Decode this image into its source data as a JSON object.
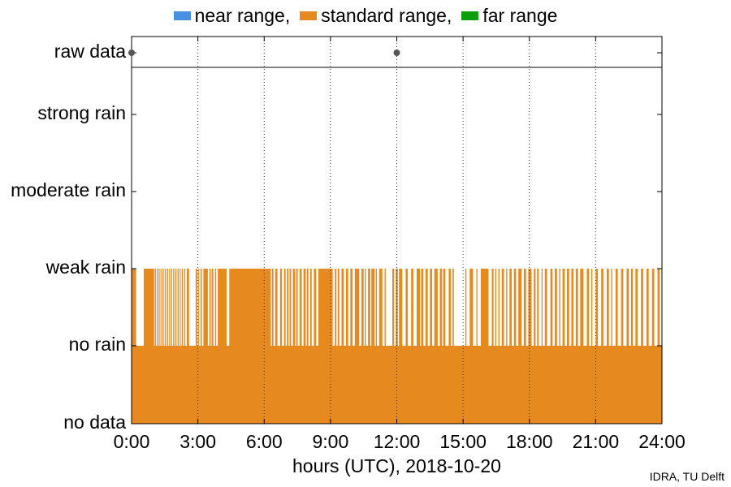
{
  "chart_data": {
    "type": "bar",
    "legend": {
      "placement": "top",
      "entries": [
        {
          "label": "near range,",
          "color": "#4a90e2"
        },
        {
          "label": "standard range,",
          "color": "#e6891e"
        },
        {
          "label": "far range",
          "color": "#0c9e0c"
        }
      ]
    },
    "y_categories": [
      "no data",
      "no rain",
      "weak rain",
      "moderate rain",
      "strong rain",
      "raw data"
    ],
    "xlabel": "hours (UTC), 2018-10-20",
    "xlim": [
      0,
      24
    ],
    "x_ticks": [
      {
        "value": 0,
        "label": "0:00"
      },
      {
        "value": 3,
        "label": "3:00"
      },
      {
        "value": 6,
        "label": "6:00"
      },
      {
        "value": 9,
        "label": "9:00"
      },
      {
        "value": 12,
        "label": "12:00"
      },
      {
        "value": 15,
        "label": "15:00"
      },
      {
        "value": 18,
        "label": "18:00"
      },
      {
        "value": 21,
        "label": "21:00"
      },
      {
        "value": 24,
        "label": "24:00"
      }
    ],
    "grid": "vertical dotted at each tick",
    "raw_data_points_hours": [
      0.0,
      12.0
    ],
    "series": [
      {
        "name": "standard range",
        "color": "#e6891e",
        "baseline_level": "no rain",
        "weak_rain_intervals_hours": [
          [
            0.0,
            0.2
          ],
          [
            0.55,
            1.02
          ],
          [
            1.05,
            1.1
          ],
          [
            1.14,
            1.18
          ],
          [
            1.22,
            1.27
          ],
          [
            1.31,
            1.35
          ],
          [
            1.4,
            1.45
          ],
          [
            1.5,
            1.55
          ],
          [
            1.6,
            1.65
          ],
          [
            1.7,
            1.74
          ],
          [
            1.78,
            1.83
          ],
          [
            1.88,
            1.93
          ],
          [
            1.98,
            2.03
          ],
          [
            2.08,
            2.13
          ],
          [
            2.18,
            2.22
          ],
          [
            2.27,
            2.32
          ],
          [
            2.38,
            2.43
          ],
          [
            2.5,
            2.6
          ],
          [
            2.9,
            2.97
          ],
          [
            3.02,
            3.06
          ],
          [
            3.12,
            3.18
          ],
          [
            3.25,
            3.45
          ],
          [
            3.52,
            3.58
          ],
          [
            3.62,
            3.7
          ],
          [
            3.78,
            3.83
          ],
          [
            3.9,
            4.3
          ],
          [
            4.42,
            6.3
          ],
          [
            6.35,
            6.42
          ],
          [
            6.5,
            6.6
          ],
          [
            6.72,
            6.8
          ],
          [
            6.9,
            6.97
          ],
          [
            7.03,
            7.1
          ],
          [
            7.15,
            7.22
          ],
          [
            7.3,
            7.4
          ],
          [
            7.45,
            7.52
          ],
          [
            7.6,
            7.7
          ],
          [
            7.78,
            7.88
          ],
          [
            7.93,
            8.0
          ],
          [
            8.08,
            8.15
          ],
          [
            8.25,
            8.35
          ],
          [
            8.45,
            9.1
          ],
          [
            9.2,
            9.27
          ],
          [
            9.33,
            9.4
          ],
          [
            9.5,
            9.6
          ],
          [
            9.7,
            9.8
          ],
          [
            9.9,
            10.0
          ],
          [
            10.1,
            10.3
          ],
          [
            10.4,
            10.5
          ],
          [
            10.55,
            10.6
          ],
          [
            10.7,
            10.8
          ],
          [
            10.85,
            11.0
          ],
          [
            11.05,
            11.1
          ],
          [
            11.2,
            11.35
          ],
          [
            11.45,
            11.5
          ],
          [
            11.8,
            11.88
          ],
          [
            11.95,
            12.05
          ],
          [
            12.1,
            12.25
          ],
          [
            12.4,
            12.5
          ],
          [
            12.65,
            12.75
          ],
          [
            12.9,
            13.05
          ],
          [
            13.1,
            13.2
          ],
          [
            13.3,
            13.4
          ],
          [
            13.5,
            13.6
          ],
          [
            13.7,
            13.85
          ],
          [
            13.95,
            14.05
          ],
          [
            14.1,
            14.2
          ],
          [
            14.35,
            14.45
          ],
          [
            14.52,
            14.58
          ],
          [
            15.1,
            15.15
          ],
          [
            15.3,
            15.45
          ],
          [
            15.6,
            15.65
          ],
          [
            15.8,
            16.15
          ],
          [
            16.3,
            16.38
          ],
          [
            16.45,
            16.5
          ],
          [
            16.6,
            16.65
          ],
          [
            16.75,
            16.85
          ],
          [
            16.95,
            17.0
          ],
          [
            17.1,
            17.2
          ],
          [
            17.3,
            17.4
          ],
          [
            17.5,
            17.65
          ],
          [
            17.75,
            17.85
          ],
          [
            17.95,
            18.1
          ],
          [
            18.2,
            18.28
          ],
          [
            18.35,
            18.42
          ],
          [
            18.55,
            18.6
          ],
          [
            18.7,
            18.8
          ],
          [
            18.95,
            19.05
          ],
          [
            19.15,
            19.25
          ],
          [
            19.35,
            19.4
          ],
          [
            19.5,
            19.6
          ],
          [
            19.7,
            19.8
          ],
          [
            19.9,
            20.0
          ],
          [
            20.1,
            20.2
          ],
          [
            20.3,
            20.45
          ],
          [
            20.6,
            20.7
          ],
          [
            20.8,
            20.85
          ],
          [
            21.0,
            21.1
          ],
          [
            21.25,
            21.35
          ],
          [
            21.5,
            21.6
          ],
          [
            21.7,
            21.75
          ],
          [
            21.9,
            22.0
          ],
          [
            22.15,
            22.25
          ],
          [
            22.4,
            22.5
          ],
          [
            22.6,
            22.68
          ],
          [
            22.8,
            22.9
          ],
          [
            23.05,
            23.15
          ],
          [
            23.3,
            23.4
          ],
          [
            23.55,
            23.65
          ],
          [
            23.8,
            23.9
          ]
        ]
      }
    ]
  },
  "credit": "IDRA, TU Delft"
}
